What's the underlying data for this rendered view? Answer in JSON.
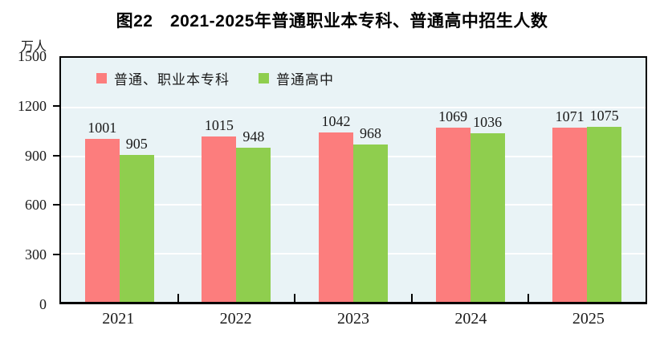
{
  "figure": {
    "title": "图22　2021-2025年普通职业本专科、普通高中招生人数",
    "unit_label": "万人"
  },
  "chart_data": {
    "type": "bar",
    "title": "图22　2021-2025年普通职业本专科、普通高中招生人数",
    "unit_label": "万人",
    "xlabel": "",
    "ylabel": "万人",
    "categories": [
      "2021",
      "2022",
      "2023",
      "2024",
      "2025"
    ],
    "series": [
      {
        "name": "普通、职业本专科",
        "color": "#FC7D7D",
        "values": [
          1001,
          1015,
          1042,
          1069,
          1071
        ]
      },
      {
        "name": "普通高中",
        "color": "#8FCE4E",
        "values": [
          905,
          948,
          968,
          1036,
          1075
        ]
      }
    ],
    "ylim": [
      0,
      1500
    ],
    "yticks": [
      0,
      300,
      600,
      900,
      1200,
      1500
    ],
    "grid": true,
    "gridline_color": "#FFFFFF",
    "plot_background": "#E9F3F6",
    "axis_color": "#000000",
    "legend_position": "top-left-inside"
  }
}
